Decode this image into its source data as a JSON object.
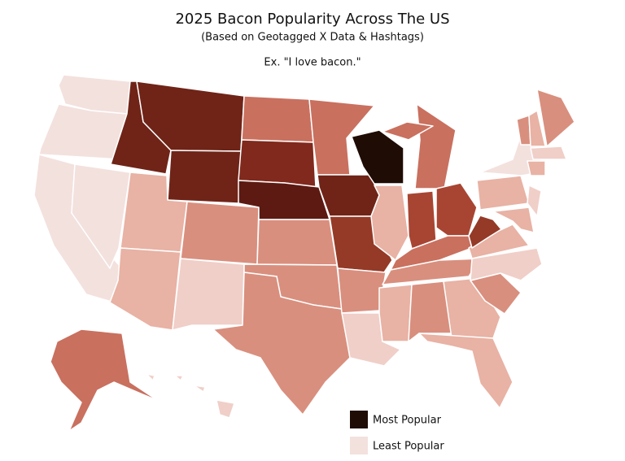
{
  "title": "2025 Bacon Popularity Across The US",
  "subtitle": "(Based on Geotagged X Data & Hashtags)",
  "annotation": "Ex. \"I love bacon.\"",
  "palette": [
    "#1f0c05",
    "#5c1a12",
    "#6f2417",
    "#80291c",
    "#943a27",
    "#a84532",
    "#c9705f",
    "#d98f7e",
    "#e8b2a4",
    "#f0cfc8",
    "#f3e1de"
  ],
  "legend": [
    {
      "label": "Most Popular",
      "color": "#1f0c05"
    },
    {
      "label": "Least Popular",
      "color": "#f3e1de"
    }
  ]
}
